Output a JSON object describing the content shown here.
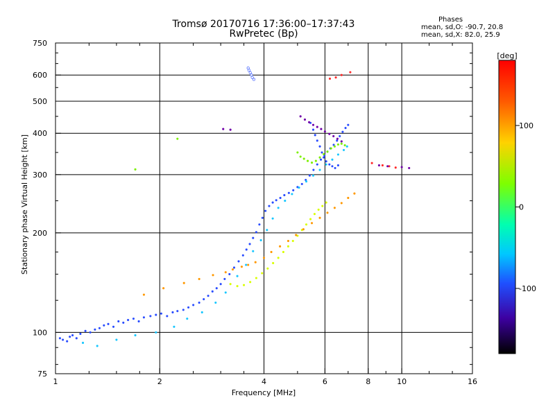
{
  "chart_data": {
    "type": "scatter",
    "title": "Tromsø 20170716 17:36:00–17:37:43",
    "subtitle": "RwPretec (Bp)",
    "xlabel": "Frequency [MHz]",
    "ylabel": "Stationary phase Virtual Height [km]",
    "xscale": "log",
    "yscale": "log",
    "xlim": [
      1,
      16
    ],
    "ylim": [
      75,
      750
    ],
    "xticks": [
      1,
      2,
      4,
      6,
      8,
      10,
      16
    ],
    "xtick_labels": [
      "1",
      "2",
      "4",
      "6",
      "8",
      "10",
      "16"
    ],
    "yticks": [
      75,
      100,
      200,
      300,
      400,
      500,
      600,
      750
    ],
    "ytick_labels": [
      "75",
      "100",
      "200",
      "300",
      "400",
      "500",
      "600",
      "750"
    ],
    "grid": true,
    "stats": {
      "heading": "Phases",
      "line1": "mean, sd,O: -90.7, 20.8",
      "line2": "mean, sd,X:  82.0, 25.9"
    },
    "colorbar": {
      "label": "[deg]",
      "min": -180,
      "max": 180,
      "ticks": [
        100,
        0,
        -100
      ],
      "tick_labels": [
        "100",
        "0",
        "-100"
      ]
    },
    "series": [
      {
        "color": "#2a4dff",
        "values": [
          [
            1.03,
            96
          ],
          [
            1.05,
            95
          ],
          [
            1.08,
            94
          ],
          [
            1.1,
            97
          ],
          [
            1.12,
            98
          ],
          [
            1.15,
            96
          ],
          [
            1.18,
            99
          ],
          [
            1.22,
            101
          ],
          [
            1.26,
            100
          ],
          [
            1.3,
            102
          ],
          [
            1.34,
            103
          ],
          [
            1.38,
            105
          ],
          [
            1.42,
            106
          ],
          [
            1.47,
            104
          ],
          [
            1.52,
            108
          ],
          [
            1.57,
            107
          ],
          [
            1.62,
            109
          ],
          [
            1.68,
            110
          ],
          [
            1.74,
            108
          ],
          [
            1.8,
            111
          ],
          [
            1.88,
            112
          ],
          [
            1.95,
            113
          ],
          [
            2.02,
            114
          ],
          [
            2.1,
            112
          ],
          [
            2.18,
            115
          ],
          [
            2.25,
            116
          ],
          [
            2.34,
            117
          ],
          [
            2.42,
            119
          ],
          [
            2.5,
            121
          ],
          [
            2.6,
            123
          ],
          [
            2.68,
            126
          ],
          [
            2.76,
            129
          ],
          [
            2.84,
            133
          ],
          [
            2.92,
            136
          ],
          [
            3.0,
            140
          ],
          [
            3.08,
            145
          ],
          [
            3.18,
            150
          ],
          [
            3.28,
            157
          ],
          [
            3.38,
            164
          ],
          [
            3.48,
            171
          ],
          [
            3.56,
            178
          ],
          [
            3.64,
            185
          ],
          [
            3.72,
            193
          ],
          [
            3.8,
            201
          ],
          [
            3.88,
            212
          ],
          [
            3.96,
            222
          ],
          [
            4.04,
            233
          ],
          [
            4.14,
            241
          ],
          [
            4.24,
            247
          ],
          [
            4.34,
            251
          ],
          [
            4.46,
            255
          ],
          [
            4.58,
            260
          ],
          [
            4.72,
            264
          ],
          [
            4.86,
            269
          ],
          [
            5.0,
            275
          ],
          [
            5.15,
            281
          ],
          [
            5.28,
            289
          ],
          [
            5.42,
            298
          ],
          [
            5.56,
            310
          ],
          [
            5.7,
            322
          ],
          [
            5.84,
            333
          ],
          [
            5.98,
            343
          ],
          [
            6.1,
            352
          ],
          [
            6.22,
            360
          ],
          [
            6.36,
            369
          ],
          [
            6.5,
            380
          ],
          [
            6.62,
            392
          ],
          [
            6.75,
            404
          ],
          [
            6.88,
            415
          ],
          [
            7.0,
            424
          ],
          [
            5.45,
            430
          ],
          [
            5.55,
            410
          ],
          [
            5.62,
            395
          ],
          [
            5.7,
            380
          ],
          [
            5.8,
            365
          ],
          [
            5.88,
            350
          ],
          [
            5.95,
            338
          ],
          [
            6.05,
            329
          ],
          [
            6.18,
            322
          ],
          [
            6.3,
            318
          ],
          [
            6.42,
            314
          ],
          [
            6.55,
            320
          ]
        ]
      },
      {
        "color": "#18c7ff",
        "values": [
          [
            1.2,
            93
          ],
          [
            1.32,
            91
          ],
          [
            1.5,
            95
          ],
          [
            1.7,
            98
          ],
          [
            1.95,
            100
          ],
          [
            2.2,
            104
          ],
          [
            2.4,
            110
          ],
          [
            2.65,
            115
          ],
          [
            2.9,
            123
          ],
          [
            3.1,
            132
          ],
          [
            3.35,
            148
          ],
          [
            3.55,
            160
          ],
          [
            3.72,
            176
          ],
          [
            3.92,
            190
          ],
          [
            4.08,
            204
          ],
          [
            4.24,
            221
          ],
          [
            4.4,
            238
          ],
          [
            4.6,
            250
          ],
          [
            4.82,
            262
          ],
          [
            5.05,
            274
          ],
          [
            5.3,
            286
          ],
          [
            5.55,
            298
          ],
          [
            5.8,
            310
          ],
          [
            6.05,
            322
          ],
          [
            6.3,
            333
          ],
          [
            6.55,
            345
          ],
          [
            6.8,
            356
          ],
          [
            6.95,
            365
          ]
        ]
      },
      {
        "color": "#7cf000",
        "values": [
          [
            1.7,
            311
          ],
          [
            2.25,
            385
          ],
          [
            5.0,
            350
          ],
          [
            5.1,
            340
          ],
          [
            5.22,
            335
          ],
          [
            5.35,
            330
          ],
          [
            5.5,
            326
          ],
          [
            5.65,
            330
          ],
          [
            5.8,
            338
          ],
          [
            5.95,
            346
          ],
          [
            6.1,
            352
          ],
          [
            6.25,
            360
          ],
          [
            6.4,
            365
          ],
          [
            6.55,
            370
          ],
          [
            6.7,
            372
          ],
          [
            6.85,
            368
          ]
        ]
      },
      {
        "color": "#d9ff00",
        "values": [
          [
            3.2,
            140
          ],
          [
            3.35,
            138
          ],
          [
            3.5,
            139
          ],
          [
            3.65,
            142
          ],
          [
            3.8,
            146
          ],
          [
            3.95,
            151
          ],
          [
            4.1,
            156
          ],
          [
            4.25,
            162
          ],
          [
            4.4,
            168
          ],
          [
            4.55,
            175
          ],
          [
            4.7,
            182
          ],
          [
            4.85,
            189
          ],
          [
            5.0,
            196
          ],
          [
            5.15,
            204
          ],
          [
            5.3,
            212
          ],
          [
            5.45,
            220
          ],
          [
            5.6,
            228
          ],
          [
            5.75,
            235
          ],
          [
            5.9,
            241
          ],
          [
            6.05,
            247
          ]
        ]
      },
      {
        "color": "#ff9800",
        "values": [
          [
            1.8,
            130
          ],
          [
            2.05,
            136
          ],
          [
            2.35,
            141
          ],
          [
            2.6,
            145
          ],
          [
            2.85,
            149
          ],
          [
            3.1,
            152
          ],
          [
            3.25,
            155
          ],
          [
            3.45,
            158
          ],
          [
            3.6,
            160
          ],
          [
            3.78,
            163
          ],
          [
            4.0,
            168
          ],
          [
            4.2,
            175
          ],
          [
            4.45,
            182
          ],
          [
            4.7,
            189
          ],
          [
            4.95,
            197
          ],
          [
            5.2,
            205
          ],
          [
            5.5,
            214
          ],
          [
            5.8,
            222
          ],
          [
            6.1,
            230
          ],
          [
            6.4,
            238
          ],
          [
            6.7,
            246
          ],
          [
            7.0,
            255
          ],
          [
            7.3,
            263
          ]
        ]
      },
      {
        "color": "#ff2a2a",
        "values": [
          [
            6.2,
            585
          ],
          [
            6.45,
            590
          ],
          [
            6.7,
            600
          ],
          [
            7.1,
            612
          ],
          [
            8.2,
            325
          ],
          [
            8.8,
            320
          ],
          [
            9.2,
            318
          ],
          [
            9.6,
            315
          ]
        ]
      },
      {
        "color": "#7000a8",
        "values": [
          [
            3.05,
            412
          ],
          [
            3.2,
            410
          ],
          [
            5.1,
            450
          ],
          [
            5.25,
            440
          ],
          [
            5.4,
            432
          ],
          [
            5.55,
            424
          ],
          [
            5.7,
            418
          ],
          [
            5.85,
            412
          ],
          [
            6.0,
            405
          ],
          [
            6.18,
            398
          ],
          [
            6.35,
            392
          ],
          [
            6.52,
            385
          ],
          [
            6.7,
            378
          ],
          [
            8.6,
            320
          ],
          [
            9.1,
            318
          ],
          [
            10.0,
            316
          ],
          [
            10.5,
            314
          ]
        ]
      },
      {
        "color": "#ffffff",
        "values": [
          [
            3.6,
            630
          ],
          [
            3.62,
            620
          ],
          [
            3.65,
            610
          ],
          [
            3.68,
            600
          ],
          [
            3.7,
            590
          ],
          [
            3.74,
            582
          ]
        ]
      }
    ]
  }
}
